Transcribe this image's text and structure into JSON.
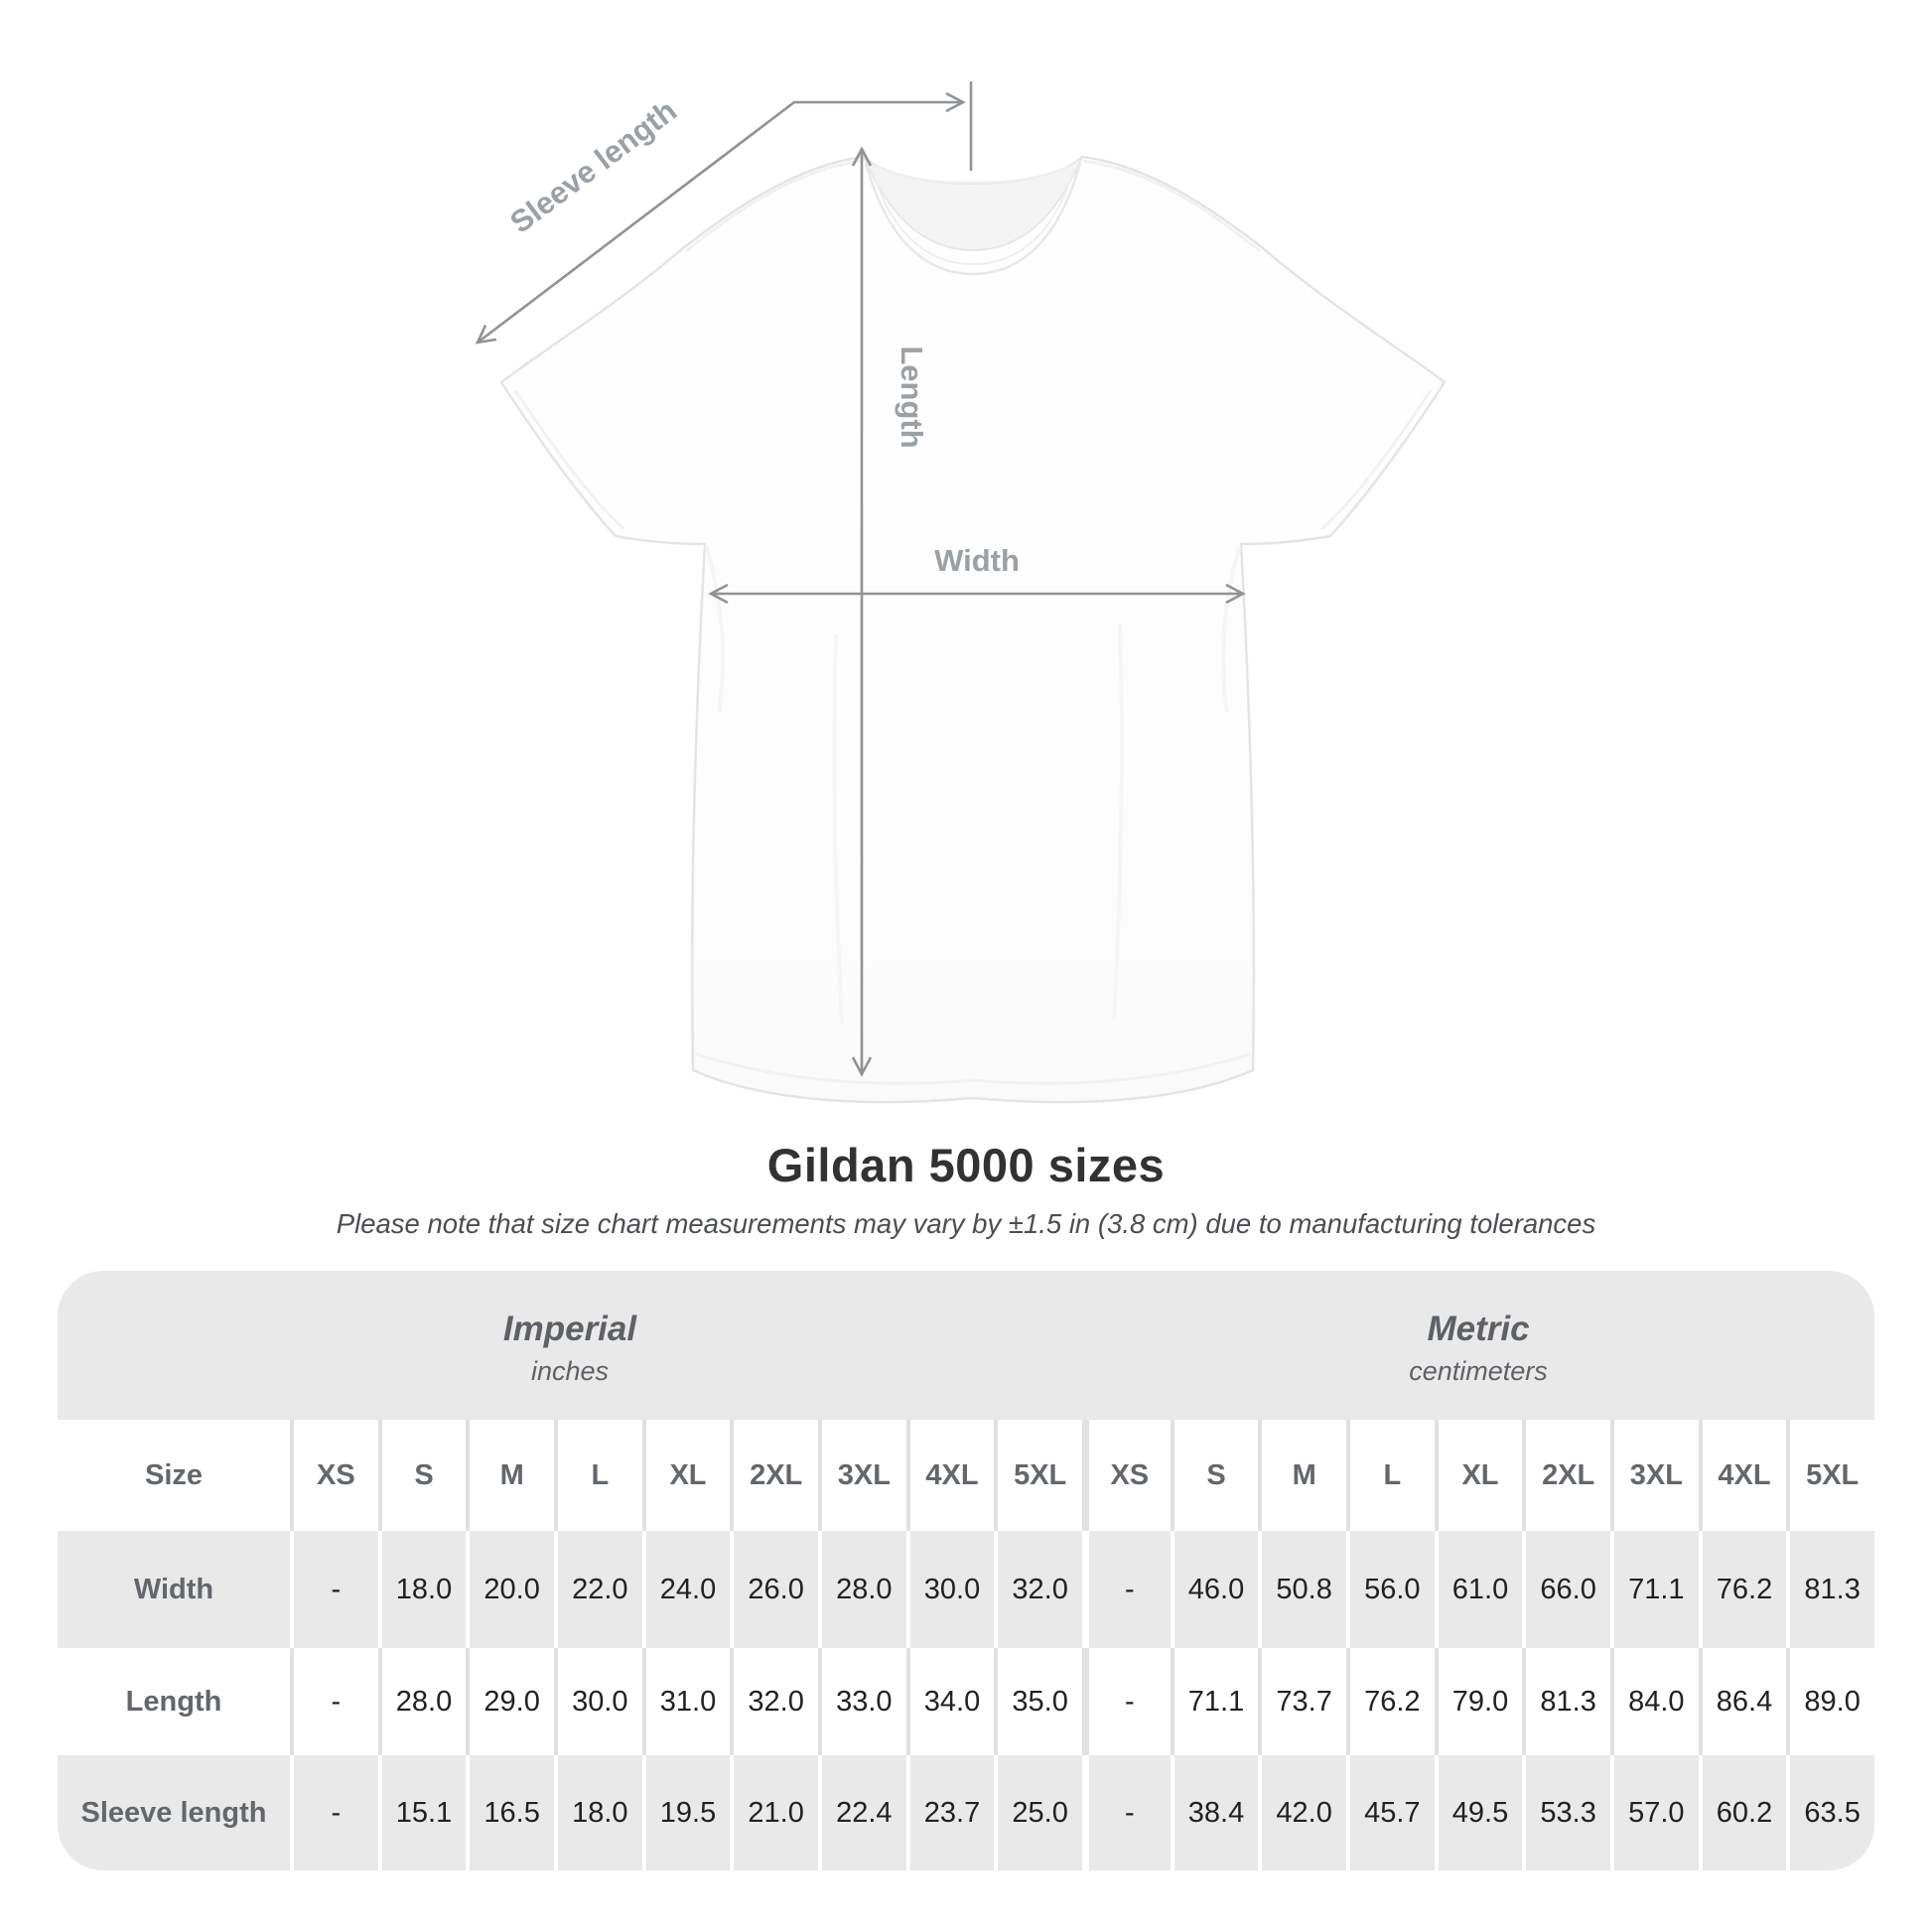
{
  "diagram": {
    "labels": {
      "sleeve_length": "Sleeve length",
      "length": "Length",
      "width": "Width"
    }
  },
  "title": "Gildan 5000 sizes",
  "subtitle": "Please note that size chart measurements may vary by ±1.5 in (3.8 cm) due to manufacturing tolerances",
  "table": {
    "groups": [
      {
        "name": "Imperial",
        "unit": "inches"
      },
      {
        "name": "Metric",
        "unit": "centimeters"
      }
    ],
    "size_header": "Size",
    "sizes": [
      "XS",
      "S",
      "M",
      "L",
      "XL",
      "2XL",
      "3XL",
      "4XL",
      "5XL"
    ],
    "rows": [
      {
        "label": "Width",
        "imperial": [
          "-",
          "18.0",
          "20.0",
          "22.0",
          "24.0",
          "26.0",
          "28.0",
          "30.0",
          "32.0"
        ],
        "metric": [
          "-",
          "46.0",
          "50.8",
          "56.0",
          "61.0",
          "66.0",
          "71.1",
          "76.2",
          "81.3"
        ]
      },
      {
        "label": "Length",
        "imperial": [
          "-",
          "28.0",
          "29.0",
          "30.0",
          "31.0",
          "32.0",
          "33.0",
          "34.0",
          "35.0"
        ],
        "metric": [
          "-",
          "71.1",
          "73.7",
          "76.2",
          "79.0",
          "81.3",
          "84.0",
          "86.4",
          "89.0"
        ]
      },
      {
        "label": "Sleeve length",
        "imperial": [
          "-",
          "15.1",
          "16.5",
          "18.0",
          "19.5",
          "21.0",
          "22.4",
          "23.7",
          "25.0"
        ],
        "metric": [
          "-",
          "38.4",
          "42.0",
          "45.7",
          "49.5",
          "53.3",
          "57.0",
          "60.2",
          "63.5"
        ]
      }
    ]
  },
  "chart_data": {
    "type": "table",
    "title": "Gildan 5000 sizes",
    "note": "Measurements may vary by ±1.5 in (3.8 cm) due to manufacturing tolerances",
    "column_groups": [
      "Imperial (inches)",
      "Metric (centimeters)"
    ],
    "sizes": [
      "XS",
      "S",
      "M",
      "L",
      "XL",
      "2XL",
      "3XL",
      "4XL",
      "5XL"
    ],
    "measurements": {
      "width_in": [
        null,
        18.0,
        20.0,
        22.0,
        24.0,
        26.0,
        28.0,
        30.0,
        32.0
      ],
      "length_in": [
        null,
        28.0,
        29.0,
        30.0,
        31.0,
        32.0,
        33.0,
        34.0,
        35.0
      ],
      "sleeve_length_in": [
        null,
        15.1,
        16.5,
        18.0,
        19.5,
        21.0,
        22.4,
        23.7,
        25.0
      ],
      "width_cm": [
        null,
        46.0,
        50.8,
        56.0,
        61.0,
        66.0,
        71.1,
        76.2,
        81.3
      ],
      "length_cm": [
        null,
        71.1,
        73.7,
        76.2,
        79.0,
        81.3,
        84.0,
        86.4,
        89.0
      ],
      "sleeve_length_cm": [
        null,
        38.4,
        42.0,
        45.7,
        49.5,
        53.3,
        57.0,
        60.2,
        63.5
      ]
    }
  },
  "colors": {
    "card_bg": "#e9e9ea",
    "header_text": "#63676b",
    "value_text": "#202124",
    "title_text": "#323232",
    "subtitle_text": "#4b4e51",
    "arrow": "#8f9396",
    "diagram_label": "#9ba0a4"
  }
}
